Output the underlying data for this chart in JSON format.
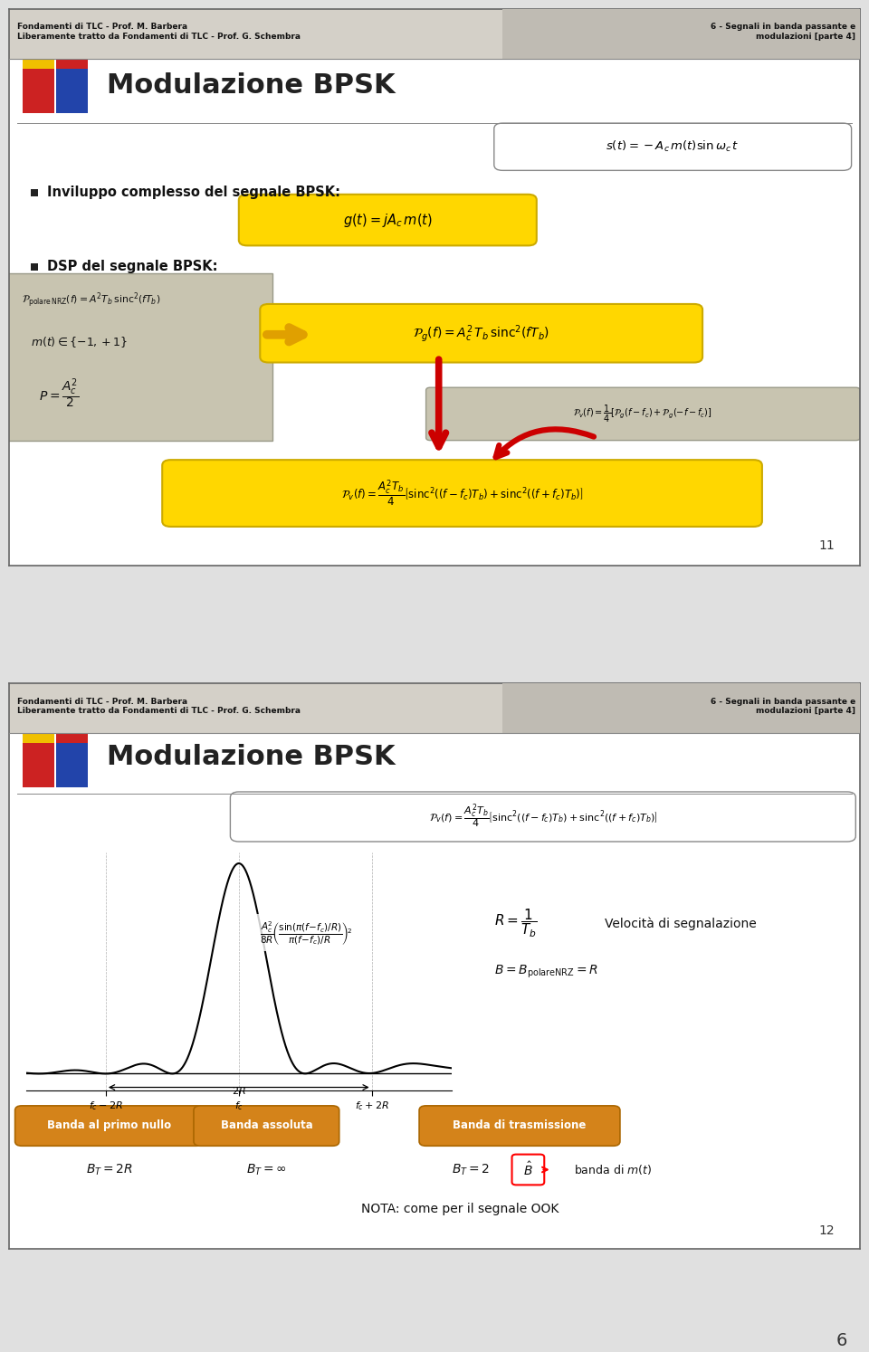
{
  "bg_color": "#e0e0e0",
  "header_bg": "#d4d0c8",
  "header_right_bg": "#bfbbb3",
  "slide1": {
    "title": "Modulazione BPSK",
    "header_left": "Fondamenti di TLC - Prof. M. Barbera\nLiberamente tratto da Fondamenti di TLC - Prof. G. Schembra",
    "header_right": "6 - Segnali in banda passante e\nmodulazioni [parte 4]",
    "page_num": "11",
    "formula_st": "$s(t) = -A_c\\,m(t)\\sin\\omega_c\\,t$",
    "bullet1": "Inviluppo complesso del segnale BPSK:",
    "formula_g": "$g(t) = jA_c\\,m(t)$",
    "bullet2": "DSP del segnale BPSK:",
    "box_left_line0": "$\\mathcal{P}_{\\mathrm{polare\\,NRZ}}(f) = A^2 T_b\\,\\mathrm{sinc}^2(fT_b)$",
    "box_left_line1": "$m(t)\\in\\{-1,+1\\}$",
    "box_left_line2": "$P = \\dfrac{A_c^2}{2}$",
    "formula_pg": "$\\mathcal{P}_g(f) = A_c^2\\,T_b\\,\\mathrm{sinc}^2(fT_b)$",
    "formula_pv_small": "$\\mathcal{P}_v(f) = \\dfrac{1}{4}\\left[\\mathcal{P}_g(f-f_c)+\\mathcal{P}_g(-f-f_c)\\right]$",
    "formula_pv_big": "$\\mathcal{P}_v(f) = \\dfrac{A_c^2 T_b}{4}\\left[\\mathrm{sinc}^2((f-f_c)T_b)+\\mathrm{sinc}^2((f+f_c)T_b)\\right]$"
  },
  "slide2": {
    "title": "Modulazione BPSK",
    "header_left": "Fondamenti di TLC - Prof. M. Barbera\nLiberamente tratto da Fondamenti di TLC - Prof. G. Schembra",
    "header_right": "6 - Segnali in banda passante e\nmodulazioni [parte 4]",
    "page_num": "12",
    "formula_pv": "$\\mathcal{P}_v(f) = \\dfrac{A_c^2 T_b}{4}\\left[\\mathrm{sinc}^2((f-f_c)T_b)+\\mathrm{sinc}^2((f+f_c)T_b)\\right]$",
    "formula_R": "$R = \\dfrac{1}{T_b}$",
    "formula_R_text": "Velocità di segnalazione",
    "formula_B": "$B = B_{\\mathrm{polareNRZ}} = R$",
    "band1_label": "Banda al primo nullo",
    "band1_val": "$B_T = 2R$",
    "band2_label": "Banda assoluta",
    "band2_val": "$B_T = \\infty$",
    "band3_label": "Banda di trasmissione",
    "band3_val": "$B_T = 2\\hat{B}$",
    "band3_sub": "banda di $m(t)$",
    "nota": "NOTA: come per il segnale OOK"
  },
  "colors": {
    "yellow_box": "#FFD700",
    "yellow_box_edge": "#CCAA00",
    "gray_box": "#C8C4B0",
    "gray_box_edge": "#999988",
    "red_arrow": "#CC0000",
    "white_box_edge": "#888888",
    "band_orange": "#D4831A",
    "band_orange_edge": "#AA6600",
    "band_yellow": "#D4C018",
    "band_yellow_edge": "#AAAA00"
  }
}
